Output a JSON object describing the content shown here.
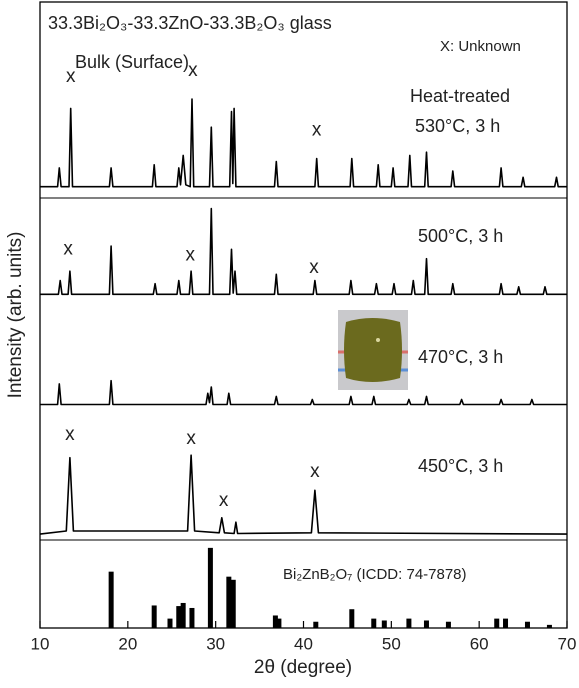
{
  "chart_data": {
    "type": "line",
    "title": "33.3Bi₂O₃-33.3ZnO-33.3B₂O₃ glass",
    "subtitle": "Bulk (Surface)",
    "legend_note": "X: Unknown",
    "group_label": "Heat-treated",
    "xlabel": "2θ (degree)",
    "ylabel": "Intensity (arb. units)",
    "xlim": [
      10,
      70
    ],
    "xticks": [
      10,
      20,
      30,
      40,
      50,
      60,
      70
    ],
    "ylim": [
      0,
      100
    ],
    "series": [
      {
        "name": "530°C, 3 h",
        "color": "#000000",
        "x": [
          10,
          12.0,
          12.2,
          12.4,
          13.3,
          13.5,
          13.7,
          17.9,
          18.1,
          18.3,
          22.8,
          23.0,
          23.2,
          25.6,
          25.8,
          26.0,
          26.3,
          26.6,
          27.1,
          27.3,
          27.5,
          29.3,
          29.5,
          29.7,
          31.6,
          31.8,
          31.95,
          32.1,
          32.3,
          36.7,
          36.9,
          37.1,
          41.3,
          41.5,
          41.7,
          45.3,
          45.5,
          45.7,
          48.3,
          48.5,
          48.7,
          50.0,
          50.2,
          50.4,
          51.9,
          52.1,
          52.3,
          53.8,
          54.0,
          54.2,
          56.8,
          57.0,
          57.2,
          62.3,
          62.5,
          62.7,
          64.8,
          65.0,
          65.2,
          68.6,
          68.8,
          69.0,
          70
        ],
        "values": [
          70.5,
          70.5,
          73.5,
          70.5,
          70.5,
          83,
          70.5,
          70.5,
          73.5,
          70.5,
          70.5,
          74,
          70.5,
          70.5,
          73.5,
          70.8,
          75.5,
          70.8,
          70.5,
          84.5,
          70.5,
          70.5,
          80,
          70.5,
          70.5,
          82.5,
          71,
          83,
          70.5,
          70.5,
          74.5,
          70.5,
          70.5,
          75,
          70.5,
          70.5,
          75,
          70.5,
          70.5,
          74,
          70.5,
          70.5,
          73.5,
          70.5,
          70.5,
          75.5,
          70.5,
          70.5,
          76,
          70.5,
          70.5,
          73,
          70.5,
          70.5,
          73.5,
          70.5,
          70.5,
          72,
          70.5,
          70.5,
          72,
          70.5,
          70.5
        ]
      },
      {
        "name": "500°C, 3 h",
        "color": "#000000",
        "x": [
          10,
          12.1,
          12.3,
          12.5,
          13.2,
          13.4,
          13.6,
          17.9,
          18.1,
          18.3,
          22.9,
          23.1,
          23.3,
          25.6,
          25.8,
          26.0,
          27.0,
          27.2,
          27.4,
          29.3,
          29.5,
          29.7,
          31.6,
          31.8,
          32.0,
          32.2,
          32.4,
          36.7,
          36.9,
          37.1,
          41.1,
          41.3,
          41.5,
          45.2,
          45.4,
          45.6,
          48.1,
          48.3,
          48.5,
          50.1,
          50.3,
          50.5,
          52.3,
          52.5,
          52.7,
          53.8,
          54.0,
          54.2,
          56.8,
          57.0,
          57.2,
          62.3,
          62.5,
          62.7,
          64.3,
          64.5,
          64.7,
          67.3,
          67.5,
          67.7,
          70
        ],
        "values": [
          53.3,
          53.3,
          55.5,
          53.3,
          53.3,
          57,
          53.3,
          53.3,
          61,
          53.3,
          53.3,
          55,
          53.3,
          53.3,
          55.5,
          53.3,
          53.3,
          57,
          53.3,
          53.3,
          67,
          53.3,
          53.3,
          60.5,
          53.5,
          57,
          53.3,
          53.3,
          56.5,
          53.3,
          53.3,
          55.5,
          53.3,
          53.3,
          55.5,
          53.3,
          53.3,
          55,
          53.3,
          53.3,
          55,
          53.3,
          53.3,
          55.5,
          53.3,
          53.3,
          59,
          53.3,
          53.3,
          55,
          53.3,
          53.3,
          55,
          53.3,
          53.3,
          54.5,
          53.3,
          53.3,
          54.5,
          53.3,
          53.3
        ]
      },
      {
        "name": "470°C, 3 h",
        "color": "#000000",
        "x": [
          10,
          12.0,
          12.2,
          12.4,
          17.9,
          18.1,
          18.3,
          28.9,
          29.1,
          29.3,
          29.5,
          29.7,
          31.3,
          31.5,
          31.7,
          36.7,
          36.9,
          37.1,
          40.8,
          41.0,
          41.2,
          45.2,
          45.4,
          45.6,
          47.8,
          48.0,
          48.2,
          51.8,
          52.0,
          52.2,
          53.8,
          54.0,
          54.2,
          57.8,
          58.0,
          58.2,
          62.3,
          62.5,
          62.7,
          65.8,
          66.0,
          66.2,
          70
        ],
        "values": [
          35.7,
          35.7,
          39,
          35.7,
          35.7,
          39.5,
          35.7,
          35.7,
          37.5,
          36,
          38.5,
          35.7,
          35.7,
          37.5,
          35.7,
          35.7,
          37,
          35.7,
          35.7,
          36.5,
          35.7,
          35.7,
          37,
          35.7,
          35.7,
          37,
          35.7,
          35.7,
          36.5,
          35.7,
          35.7,
          37,
          35.7,
          35.7,
          36.5,
          35.7,
          35.7,
          36.5,
          35.7,
          35.7,
          36.5,
          35.7,
          35.7
        ]
      },
      {
        "name": "450°C, 3 h",
        "color": "#000000",
        "x": [
          10,
          13.0,
          13.4,
          13.8,
          26.8,
          27.2,
          27.6,
          30.4,
          30.7,
          31.0,
          32.1,
          32.3,
          32.5,
          40.9,
          41.3,
          41.7,
          70
        ],
        "values": [
          15,
          15.5,
          27.2,
          15.5,
          15.5,
          27.6,
          15.5,
          15.2,
          17.6,
          15.2,
          15.1,
          16.9,
          15.1,
          15.2,
          22,
          15.2,
          15
        ]
      }
    ],
    "reference": {
      "name": "Bi₂ZnB₂O₇ (ICDD: 74-7878)",
      "color": "#000000",
      "x": [
        18.1,
        23.0,
        24.8,
        25.8,
        26.3,
        27.3,
        29.4,
        31.5,
        32.0,
        36.8,
        37.2,
        41.4,
        45.5,
        48.0,
        49.2,
        52.0,
        54.0,
        56.5,
        62.0,
        63.0,
        65.5,
        68.0
      ],
      "values": [
        9,
        3.6,
        1.5,
        3.5,
        4,
        3.2,
        12.8,
        8.2,
        7.7,
        2,
        1.5,
        1,
        3,
        1.5,
        1.2,
        1.5,
        1.2,
        1,
        1.5,
        1.5,
        1,
        0.5
      ]
    },
    "annotations": [
      {
        "text": "x",
        "x": 13.5,
        "y": 88
      },
      {
        "text": "x",
        "x": 27.4,
        "y": 89
      },
      {
        "text": "x",
        "x": 41.5,
        "y": 79.5
      },
      {
        "text": "x",
        "x": 13.2,
        "y": 60.5
      },
      {
        "text": "x",
        "x": 27.1,
        "y": 59.5
      },
      {
        "text": "x",
        "x": 41.2,
        "y": 57.5
      },
      {
        "text": "x",
        "x": 13.4,
        "y": 30.8
      },
      {
        "text": "x",
        "x": 27.2,
        "y": 30.2
      },
      {
        "text": "x",
        "x": 30.9,
        "y": 20.3
      },
      {
        "text": "x",
        "x": 41.3,
        "y": 24.9
      }
    ]
  }
}
